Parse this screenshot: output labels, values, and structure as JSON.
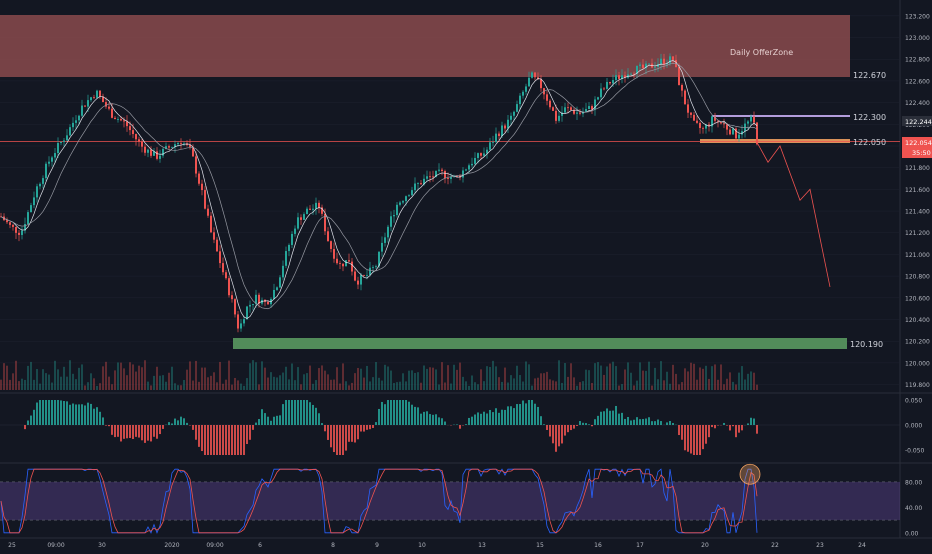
{
  "chart_data": [
    {
      "type": "candlestick",
      "panel": "price",
      "x_ticks": [
        "25",
        "09:00",
        "30",
        "2020",
        "09:00",
        "6",
        "8",
        "9",
        "10",
        "13",
        "15",
        "16",
        "17",
        "20",
        "22",
        "23",
        "24"
      ],
      "y_ticks": [
        "119.800",
        "120.000",
        "120.200",
        "120.400",
        "120.600",
        "120.800",
        "121.000",
        "121.200",
        "121.400",
        "121.600",
        "121.800",
        "122.000",
        "122.200",
        "122.400",
        "122.600",
        "122.800",
        "123.000",
        "123.200"
      ],
      "ylim": [
        119.75,
        123.3
      ],
      "close_path": [
        [
          0,
          121.35
        ],
        [
          10,
          121.25
        ],
        [
          20,
          121.2
        ],
        [
          35,
          121.6
        ],
        [
          50,
          121.9
        ],
        [
          65,
          122.1
        ],
        [
          80,
          122.35
        ],
        [
          95,
          122.5
        ],
        [
          110,
          122.3
        ],
        [
          125,
          122.2
        ],
        [
          140,
          122.0
        ],
        [
          155,
          121.9
        ],
        [
          170,
          122.0
        ],
        [
          180,
          122.05
        ],
        [
          190,
          121.95
        ],
        [
          200,
          121.6
        ],
        [
          210,
          121.2
        ],
        [
          220,
          120.9
        ],
        [
          230,
          120.6
        ],
        [
          238,
          120.3
        ],
        [
          245,
          120.5
        ],
        [
          255,
          120.6
        ],
        [
          265,
          120.55
        ],
        [
          275,
          120.7
        ],
        [
          285,
          121.0
        ],
        [
          295,
          121.3
        ],
        [
          305,
          121.4
        ],
        [
          318,
          121.45
        ],
        [
          328,
          121.1
        ],
        [
          338,
          120.9
        ],
        [
          348,
          120.95
        ],
        [
          355,
          120.75
        ],
        [
          365,
          120.8
        ],
        [
          375,
          120.9
        ],
        [
          385,
          121.2
        ],
        [
          395,
          121.45
        ],
        [
          410,
          121.6
        ],
        [
          425,
          121.7
        ],
        [
          440,
          121.75
        ],
        [
          455,
          121.7
        ],
        [
          470,
          121.85
        ],
        [
          485,
          121.95
        ],
        [
          495,
          122.1
        ],
        [
          510,
          122.25
        ],
        [
          520,
          122.45
        ],
        [
          530,
          122.65
        ],
        [
          540,
          122.55
        ],
        [
          548,
          122.4
        ],
        [
          555,
          122.25
        ],
        [
          565,
          122.35
        ],
        [
          578,
          122.3
        ],
        [
          590,
          122.35
        ],
        [
          600,
          122.5
        ],
        [
          610,
          122.6
        ],
        [
          620,
          122.65
        ],
        [
          630,
          122.7
        ],
        [
          645,
          122.72
        ],
        [
          660,
          122.78
        ],
        [
          672,
          122.8
        ],
        [
          682,
          122.45
        ],
        [
          692,
          122.2
        ],
        [
          702,
          122.15
        ],
        [
          712,
          122.25
        ],
        [
          722,
          122.2
        ],
        [
          735,
          122.1
        ],
        [
          745,
          122.2
        ],
        [
          752,
          122.25
        ],
        [
          756,
          122.05
        ]
      ],
      "zones": [
        {
          "name": "Daily OfferZone",
          "kind": "supply",
          "y_from": 122.67,
          "y_to": 123.25,
          "color": "#f3989a"
        },
        {
          "kind": "support",
          "y_from": 120.13,
          "y_to": 120.24,
          "color": "#5a9960"
        },
        {
          "kind": "demand",
          "y_from": 122.02,
          "y_to": 122.07,
          "color": "#f0a060"
        }
      ],
      "levels": [
        {
          "label": "122.670",
          "y": 122.67
        },
        {
          "label": "122.300",
          "y": 122.3
        },
        {
          "label": "122.050",
          "y": 122.05
        },
        {
          "label": "120.190",
          "y": 120.19
        }
      ],
      "current_price": {
        "label": "122.244",
        "y": 122.244
      },
      "bid_price": {
        "label": "122.054",
        "countdown": "35:50",
        "y": 122.054
      },
      "projection": [
        [
          756,
          122.05
        ],
        [
          768,
          121.85
        ],
        [
          780,
          122.0
        ],
        [
          800,
          121.5
        ],
        [
          810,
          121.6
        ],
        [
          830,
          120.7
        ]
      ],
      "volume": true
    },
    {
      "type": "histogram",
      "panel": "momentum",
      "y_ticks": [
        "0.050",
        "0.000",
        "-0.050"
      ],
      "ylim": [
        -0.07,
        0.06
      ]
    },
    {
      "type": "line",
      "panel": "stochastic",
      "y_ticks": [
        "80.00",
        "40.00",
        "0.00"
      ],
      "ylim": [
        -5,
        105
      ],
      "band": [
        20,
        80
      ],
      "series": [
        {
          "color": "#ef5350"
        },
        {
          "color": "#2962ff"
        }
      ]
    }
  ],
  "colors": {
    "background": "#131722",
    "up": "#26a69a",
    "down": "#ef5350",
    "axis_text": "#b2b5be",
    "grid": "#1e2230"
  },
  "labels": {
    "zone_title": "Daily OfferZone",
    "price_tag": "122.244",
    "bid_tag": "122.054",
    "countdown": "35:50",
    "lvl_122670": "122.670",
    "lvl_122300": "122.300",
    "lvl_122050": "122.050",
    "lvl_120190": "120.190"
  }
}
